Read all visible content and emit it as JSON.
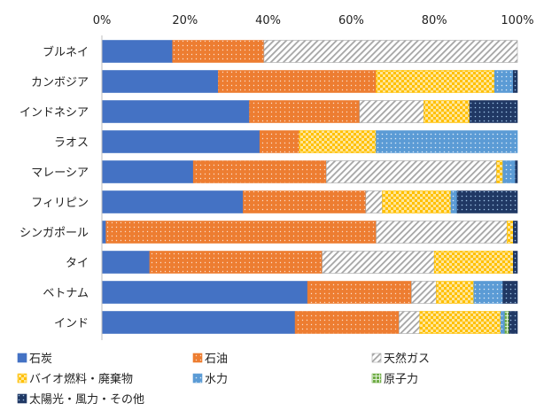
{
  "chart_data": {
    "type": "bar",
    "orientation": "horizontal",
    "stacked": true,
    "percent": true,
    "title": "",
    "xlabel": "",
    "ylabel": "",
    "xlim": [
      0,
      100
    ],
    "x_ticks": [
      "0%",
      "20%",
      "40%",
      "60%",
      "80%",
      "100%"
    ],
    "grid": false,
    "legend_position": "bottom",
    "categories": [
      "ブルネイ",
      "カンボジア",
      "インドネシア",
      "ラオス",
      "マレーシア",
      "フィリピン",
      "シンガポール",
      "タイ",
      "ベトナム",
      "インド"
    ],
    "series": [
      {
        "name": "石炭",
        "color": "#4472C4",
        "pattern": "solid",
        "values": [
          17,
          28,
          35.5,
          38,
          22,
          34,
          1,
          11.5,
          49.5,
          46.5
        ]
      },
      {
        "name": "石油",
        "color": "#ED7D31",
        "pattern": "dots",
        "values": [
          22,
          38,
          26.5,
          9.5,
          32,
          29.5,
          65,
          41.5,
          25,
          25
        ]
      },
      {
        "name": "天然ガス",
        "color": "#A5A5A5",
        "pattern": "diagonal",
        "values": [
          61,
          0,
          15.5,
          0,
          41,
          4,
          31.5,
          27,
          6,
          5
        ]
      },
      {
        "name": "バイオ燃料・廃棄物",
        "color": "#FFC000",
        "pattern": "checker",
        "values": [
          0,
          28.5,
          11,
          18.5,
          1.5,
          16.5,
          1.5,
          19,
          9,
          19.5
        ]
      },
      {
        "name": "水力",
        "color": "#5B9BD5",
        "pattern": "dots-light",
        "values": [
          0,
          4.5,
          0,
          34,
          3,
          1.5,
          0,
          0,
          7,
          1
        ]
      },
      {
        "name": "原子力",
        "color": "#70AD47",
        "pattern": "grid",
        "values": [
          0,
          0,
          0,
          0,
          0,
          0,
          0,
          0,
          0,
          1
        ]
      },
      {
        "name": "太陽光・風力・その他",
        "color": "#203864",
        "pattern": "dots-dark",
        "values": [
          0,
          1,
          11.5,
          0,
          0.5,
          14.5,
          1,
          1,
          3.5,
          2
        ]
      }
    ]
  }
}
